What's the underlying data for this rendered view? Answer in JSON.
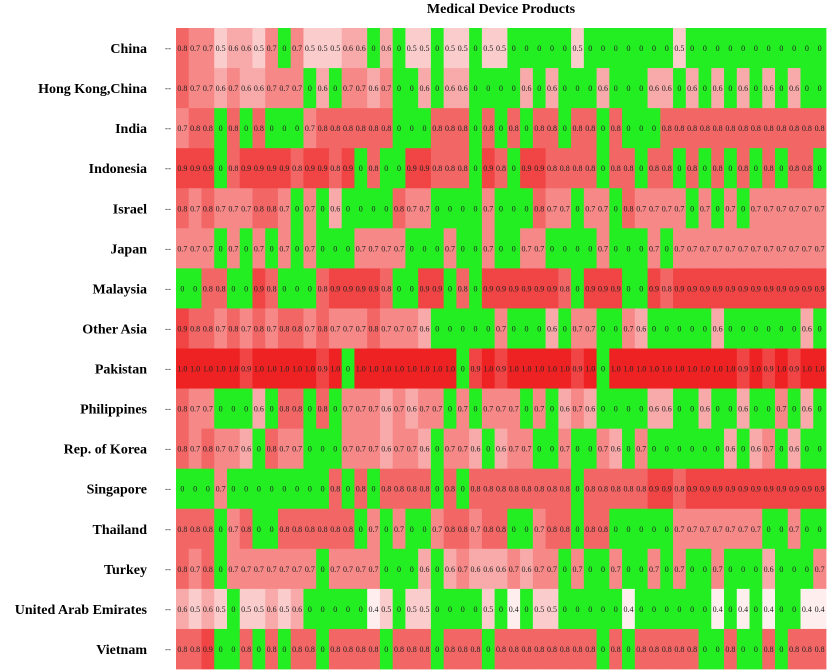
{
  "chart_data": {
    "type": "heatmap",
    "title": "Medical Device Products",
    "rows": [
      "China",
      "Hong Kong,China",
      "India",
      "Indonesia",
      "Israel",
      "Japan",
      "Malaysia",
      "Other Asia",
      "Pakistan",
      "Philippines",
      "Rep. of Korea",
      "Singapore",
      "Thailand",
      "Turkey",
      "United Arab Emirates",
      "Vietnam"
    ],
    "n_columns": 51,
    "value_range": [
      0,
      1
    ],
    "color_scale": {
      "zero": "#22ee22",
      "low": "#ffffff",
      "high": "#ee2222"
    },
    "values": [
      [
        0.8,
        0.7,
        0.7,
        0.5,
        0.6,
        0.6,
        0.5,
        0.7,
        0,
        0.7,
        0.5,
        0.5,
        0.5,
        0.6,
        0.6,
        0,
        0.6,
        0,
        0.5,
        0.5,
        0,
        0.5,
        0.5,
        0,
        0.5,
        0.5,
        0,
        0,
        0,
        0,
        0,
        0.5,
        0,
        0,
        0,
        0,
        0,
        0,
        0,
        0.5,
        0,
        0,
        0,
        0,
        0,
        0,
        0,
        0,
        0,
        0,
        0
      ],
      [
        0.8,
        0.7,
        0.7,
        0.6,
        0.7,
        0.6,
        0.6,
        0.7,
        0.7,
        0.7,
        0,
        0.6,
        0,
        0.7,
        0.7,
        0.6,
        0.7,
        0,
        0,
        0.6,
        0,
        0.6,
        0.6,
        0,
        0,
        0,
        0,
        0.6,
        0,
        0.6,
        0,
        0,
        0,
        0.6,
        0,
        0,
        0,
        0.6,
        0.6,
        0,
        0.6,
        0,
        0.6,
        0,
        0.6,
        0,
        0.6,
        0,
        0.6,
        0,
        0
      ],
      [
        0.7,
        0.8,
        0.8,
        0,
        0.8,
        0,
        0.8,
        0,
        0,
        0,
        0.7,
        0.8,
        0.8,
        0.8,
        0.8,
        0.8,
        0.8,
        0,
        0,
        0,
        0.8,
        0.8,
        0.8,
        0,
        0.8,
        0,
        0.8,
        0,
        0.8,
        0.8,
        0,
        0.8,
        0.8,
        0,
        0.8,
        0,
        0,
        0,
        0.8,
        0.8,
        0.8,
        0.8,
        0.8,
        0.8,
        0.8,
        0.8,
        0.8,
        0.8,
        0.8,
        0.8,
        0.8
      ],
      [
        0.9,
        0.9,
        0.9,
        0,
        0.8,
        0.9,
        0.9,
        0.9,
        0.9,
        0.8,
        0.9,
        0.9,
        0.8,
        0.9,
        0,
        0.8,
        0,
        0,
        0.9,
        0.9,
        0.8,
        0.8,
        0.8,
        0,
        0.9,
        0.8,
        0,
        0.9,
        0.9,
        0.8,
        0.8,
        0.8,
        0.8,
        0,
        0.8,
        0.8,
        0,
        0.8,
        0.8,
        0,
        0.8,
        0,
        0.8,
        0,
        0.8,
        0,
        0.8,
        0,
        0.8,
        0.8,
        0
      ],
      [
        0.8,
        0.7,
        0.8,
        0.7,
        0.7,
        0.7,
        0.8,
        0.8,
        0.7,
        0,
        0.7,
        0,
        0.6,
        0,
        0,
        0,
        0,
        0.8,
        0.7,
        0.7,
        0,
        0,
        0,
        0,
        0.7,
        0,
        0,
        0,
        0.8,
        0.7,
        0.7,
        0,
        0.7,
        0.7,
        0,
        0.8,
        0.7,
        0.7,
        0.7,
        0.7,
        0,
        0.7,
        0,
        0.7,
        0,
        0.7,
        0.7,
        0.7,
        0.7,
        0.7,
        0.7
      ],
      [
        0.7,
        0.7,
        0.7,
        0,
        0.7,
        0,
        0.7,
        0,
        0.7,
        0,
        0.7,
        0,
        0,
        0,
        0.7,
        0.7,
        0.7,
        0.7,
        0,
        0,
        0,
        0.7,
        0,
        0,
        0.7,
        0,
        0,
        0.7,
        0.7,
        0,
        0,
        0,
        0,
        0.7,
        0,
        0,
        0,
        0.7,
        0,
        0.7,
        0.7,
        0.7,
        0.7,
        0.7,
        0.7,
        0.7,
        0.7,
        0.7,
        0.7,
        0.7,
        0.7
      ],
      [
        0,
        0,
        0.8,
        0.8,
        0,
        0,
        0.9,
        0.8,
        0,
        0,
        0,
        0.8,
        0.9,
        0.9,
        0.9,
        0.9,
        0.8,
        0,
        0,
        0.9,
        0.9,
        0,
        0.8,
        0,
        0.9,
        0.9,
        0.9,
        0.9,
        0.9,
        0.9,
        0.8,
        0,
        0.9,
        0.9,
        0.9,
        0,
        0,
        0.9,
        0.8,
        0.9,
        0.9,
        0.9,
        0.9,
        0.9,
        0.9,
        0.9,
        0.9,
        0.9,
        0.9,
        0.9,
        0.9
      ],
      [
        0.9,
        0.8,
        0.8,
        0.7,
        0.8,
        0.7,
        0.8,
        0.7,
        0.8,
        0.8,
        0.7,
        0.8,
        0.7,
        0.7,
        0.7,
        0.8,
        0.7,
        0.7,
        0.7,
        0.6,
        0,
        0,
        0,
        0,
        0,
        0.7,
        0,
        0,
        0,
        0.6,
        0,
        0.7,
        0.7,
        0,
        0,
        0.7,
        0.6,
        0,
        0,
        0,
        0,
        0,
        0.6,
        0,
        0,
        0,
        0,
        0,
        0,
        0.6,
        0
      ],
      [
        1.0,
        1.0,
        1.0,
        1.0,
        1.0,
        0.9,
        1.0,
        1.0,
        1.0,
        1.0,
        1.0,
        0.9,
        1.0,
        0,
        1.0,
        1.0,
        1.0,
        1.0,
        1.0,
        1.0,
        1.0,
        1.0,
        0,
        0.9,
        1.0,
        0.9,
        1.0,
        1.0,
        1.0,
        1.0,
        1.0,
        0.9,
        1.0,
        0,
        1.0,
        1.0,
        1.0,
        1.0,
        1.0,
        1.0,
        1.0,
        1.0,
        1.0,
        1.0,
        0.9,
        1.0,
        0.9,
        1.0,
        0.9,
        1.0,
        1.0
      ],
      [
        0.8,
        0.7,
        0.7,
        0,
        0,
        0,
        0.6,
        0,
        0.8,
        0.8,
        0,
        0.8,
        0,
        0.7,
        0.7,
        0.7,
        0.6,
        0.7,
        0.6,
        0.7,
        0.7,
        0,
        0.7,
        0,
        0.7,
        0.7,
        0.7,
        0,
        0.7,
        0,
        0.6,
        0.7,
        0.6,
        0,
        0,
        0,
        0,
        0.6,
        0.6,
        0,
        0,
        0.6,
        0,
        0,
        0.6,
        0,
        0,
        0.7,
        0,
        0.6,
        0
      ],
      [
        0.8,
        0.7,
        0.8,
        0.7,
        0.7,
        0.6,
        0,
        0.8,
        0.7,
        0.7,
        0,
        0,
        0,
        0.7,
        0.7,
        0.7,
        0.6,
        0.7,
        0.7,
        0.6,
        0,
        0.7,
        0.7,
        0.6,
        0,
        0.6,
        0.7,
        0.7,
        0,
        0,
        0.7,
        0,
        0,
        0.7,
        0.6,
        0,
        0.7,
        0,
        0,
        0,
        0,
        0,
        0,
        0.6,
        0,
        0.6,
        0.7,
        0,
        0.6,
        0,
        0
      ],
      [
        0,
        0,
        0,
        0.7,
        0,
        0,
        0,
        0,
        0,
        0,
        0,
        0,
        0.8,
        0,
        0.8,
        0,
        0.8,
        0.8,
        0.8,
        0.8,
        0,
        0.8,
        0,
        0.8,
        0.8,
        0.8,
        0.8,
        0.8,
        0.8,
        0.8,
        0.8,
        0,
        0.8,
        0.8,
        0.8,
        0.8,
        0.8,
        0.9,
        0.9,
        0.8,
        0.9,
        0.9,
        0.9,
        0.9,
        0.9,
        0.9,
        0.9,
        0.9,
        0.9,
        0.9,
        0.9
      ],
      [
        0.8,
        0.8,
        0.8,
        0,
        0.7,
        0.8,
        0,
        0,
        0.8,
        0.8,
        0.8,
        0.8,
        0.8,
        0.8,
        0,
        0.7,
        0,
        0.7,
        0,
        0,
        0.7,
        0.8,
        0.8,
        0.7,
        0.8,
        0.8,
        0,
        0,
        0.7,
        0.8,
        0.8,
        0,
        0.8,
        0.8,
        0,
        0,
        0,
        0,
        0,
        0.7,
        0.7,
        0.7,
        0.7,
        0.7,
        0.7,
        0.7,
        0,
        0,
        0.7,
        0,
        0
      ],
      [
        0.8,
        0.7,
        0.8,
        0,
        0.7,
        0.7,
        0.7,
        0.7,
        0.7,
        0.7,
        0.7,
        0,
        0.7,
        0.7,
        0.7,
        0.7,
        0,
        0,
        0,
        0.6,
        0,
        0.6,
        0.7,
        0.6,
        0.6,
        0.6,
        0.7,
        0.6,
        0.7,
        0.7,
        0,
        0.7,
        0,
        0,
        0.7,
        0,
        0,
        0.7,
        0,
        0.7,
        0,
        0,
        0.7,
        0,
        0,
        0,
        0.6,
        0,
        0,
        0,
        0.7
      ],
      [
        0.6,
        0.5,
        0.6,
        0.5,
        0,
        0.5,
        0.5,
        0.6,
        0.5,
        0.6,
        0,
        0,
        0,
        0,
        0,
        0.4,
        0.5,
        0,
        0.5,
        0.5,
        0,
        0,
        0,
        0,
        0.5,
        0,
        0.4,
        0,
        0.5,
        0.5,
        0,
        0,
        0,
        0,
        0,
        0.4,
        0,
        0,
        0,
        0,
        0,
        0,
        0.4,
        0,
        0.4,
        0,
        0.4,
        0,
        0,
        0.4,
        0.4
      ],
      [
        0.8,
        0.8,
        0.9,
        0,
        0,
        0.8,
        0,
        0.8,
        0,
        0.8,
        0.8,
        0,
        0.8,
        0.8,
        0.8,
        0.8,
        0,
        0.8,
        0.8,
        0.8,
        0,
        0.8,
        0.8,
        0.8,
        0,
        0.8,
        0.8,
        0.8,
        0.8,
        0.8,
        0.8,
        0.8,
        0.8,
        0,
        0.8,
        0,
        0.8,
        0.8,
        0.8,
        0.8,
        0.8,
        0,
        0,
        0.8,
        0,
        0,
        0.8,
        0,
        0.8,
        0.8,
        0.8
      ]
    ]
  }
}
